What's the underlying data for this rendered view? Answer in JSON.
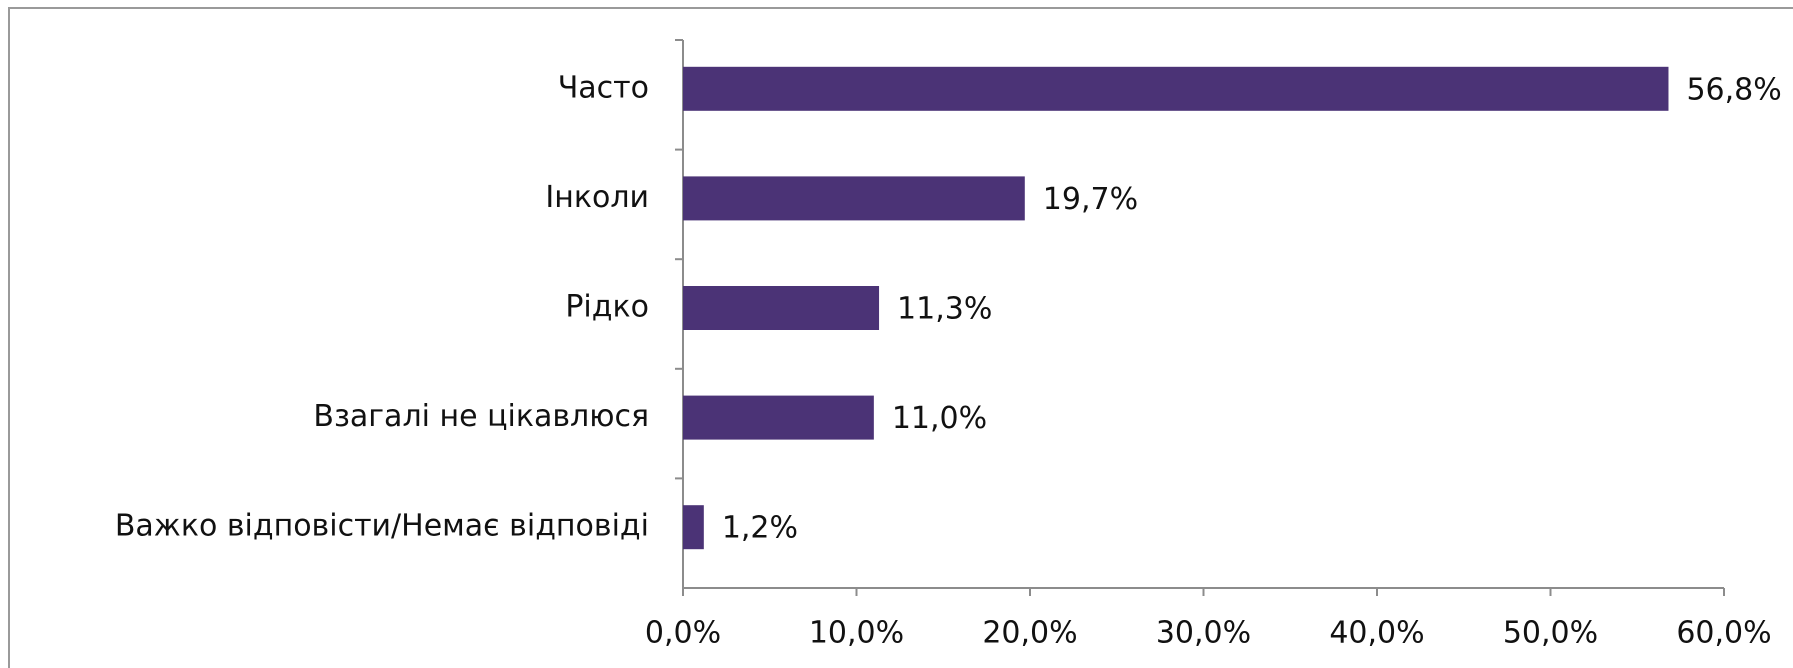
{
  "chart_data": {
    "type": "hbar",
    "categories": [
      "Часто",
      "Інколи",
      "Рідко",
      "Взагалі не цікавлюся",
      "Важко відповісти/Немає відповіді"
    ],
    "values": [
      56.8,
      19.7,
      11.3,
      11.0,
      1.2
    ],
    "value_labels": [
      "56,8%",
      "19,7%",
      "11,3%",
      "11,0%",
      "1,2%"
    ],
    "color": "#4b3376",
    "xlim": [
      0,
      60
    ],
    "xticks": [
      {
        "value": 0,
        "label": "0,0%"
      },
      {
        "value": 10,
        "label": "10,0%"
      },
      {
        "value": 20,
        "label": "20,0%"
      },
      {
        "value": 30,
        "label": "30,0%"
      },
      {
        "value": 40,
        "label": "40,0%"
      },
      {
        "value": 50,
        "label": "50,0%"
      },
      {
        "value": 60,
        "label": "60,0%"
      }
    ],
    "grid": false
  }
}
